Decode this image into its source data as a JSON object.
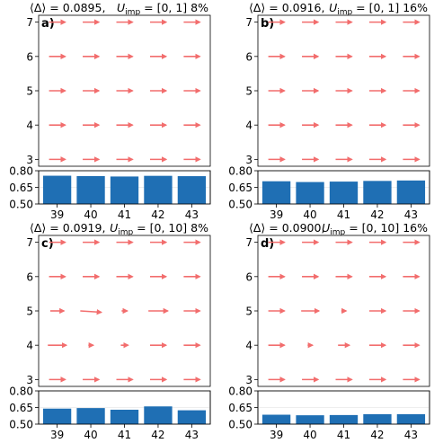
{
  "chart_data": [
    {
      "label": "a)",
      "title_delta": "⟨Δ⟩ = 0.0895,",
      "title_u": "U",
      "title_u_sub": "imp",
      "title_range": " = [0, 1] 8%",
      "type": "quiver",
      "x": [
        39,
        40,
        41,
        42,
        43
      ],
      "y": [
        3,
        4,
        5,
        6,
        7
      ],
      "ylim": [
        2.8,
        7.2
      ],
      "arrow_lengths": [
        [
          1,
          1,
          1,
          1,
          1
        ],
        [
          1,
          1,
          1,
          1,
          1
        ],
        [
          1,
          1,
          1,
          1,
          1
        ],
        [
          1,
          1,
          1,
          1,
          1
        ],
        [
          1,
          1,
          1,
          1,
          1
        ]
      ],
      "bars": {
        "type": "bar",
        "categories": [
          "39",
          "40",
          "41",
          "42",
          "43"
        ],
        "values": [
          0.755,
          0.752,
          0.748,
          0.754,
          0.751
        ],
        "yticks": [
          "0.50",
          "0.65",
          "0.80"
        ],
        "ylim": [
          0.5,
          0.8
        ]
      }
    },
    {
      "label": "b)",
      "title_delta": "⟨Δ⟩ = 0.0916,",
      "title_u": "U",
      "title_u_sub": "imp",
      "title_range": " = [0, 1] 16%",
      "type": "quiver",
      "x": [
        39,
        40,
        41,
        42,
        43
      ],
      "y": [
        3,
        4,
        5,
        6,
        7
      ],
      "ylim": [
        2.8,
        7.2
      ],
      "arrow_lengths": [
        [
          1,
          1,
          1,
          1,
          1
        ],
        [
          1,
          1,
          1,
          1,
          1
        ],
        [
          1,
          1,
          1,
          1,
          1
        ],
        [
          1,
          1,
          1,
          1,
          1
        ],
        [
          1,
          1,
          1,
          1,
          1
        ]
      ],
      "bars": {
        "type": "bar",
        "categories": [
          "39",
          "40",
          "41",
          "42",
          "43"
        ],
        "values": [
          0.705,
          0.698,
          0.702,
          0.708,
          0.712
        ],
        "yticks": [
          "0.50",
          "0.65",
          "0.80"
        ],
        "ylim": [
          0.5,
          0.8
        ]
      }
    },
    {
      "label": "c)",
      "title_delta": "⟨Δ⟩ = 0.0919,",
      "title_u": "U",
      "title_u_sub": "imp",
      "title_range": " = [0, 10] 8%",
      "type": "quiver",
      "x": [
        39,
        40,
        41,
        42,
        43
      ],
      "y": [
        3,
        4,
        5,
        6,
        7
      ],
      "ylim": [
        2.8,
        7.2
      ],
      "arrow_lengths": [
        [
          1,
          1,
          1,
          1,
          1
        ],
        [
          1.15,
          0.3,
          0.45,
          1,
          1
        ],
        [
          0.85,
          1.3,
          0.35,
          1.2,
          1
        ],
        [
          1,
          1,
          1,
          1,
          1
        ],
        [
          1,
          1,
          1,
          1,
          1
        ]
      ],
      "bars": {
        "type": "bar",
        "categories": [
          "39",
          "40",
          "41",
          "42",
          "43"
        ],
        "values": [
          0.64,
          0.645,
          0.63,
          0.66,
          0.625
        ],
        "yticks": [
          "0.50",
          "0.65",
          "0.80"
        ],
        "ylim": [
          0.5,
          0.8
        ]
      }
    },
    {
      "label": "d)",
      "title_delta": "⟨Δ⟩ = 0.0900,",
      "title_u": "U",
      "title_u_sub": "imp",
      "title_range": " = [0, 10] 16%",
      "type": "quiver",
      "x": [
        39,
        40,
        41,
        42,
        43
      ],
      "y": [
        3,
        4,
        5,
        6,
        7
      ],
      "ylim": [
        2.8,
        7.2
      ],
      "arrow_lengths": [
        [
          1,
          1,
          1,
          1,
          1
        ],
        [
          1,
          0.3,
          0.7,
          1,
          1
        ],
        [
          1,
          1.1,
          0.3,
          1,
          1
        ],
        [
          1,
          1,
          1,
          1,
          1
        ],
        [
          1,
          1,
          1,
          1,
          1
        ]
      ],
      "bars": {
        "type": "bar",
        "categories": [
          "39",
          "40",
          "41",
          "42",
          "43"
        ],
        "values": [
          0.585,
          0.58,
          0.582,
          0.59,
          0.59
        ],
        "yticks": [
          "0.50",
          "0.65",
          "0.80"
        ],
        "ylim": [
          0.5,
          0.8
        ]
      }
    }
  ],
  "colors": {
    "arrow": "#f26d6d",
    "bar": "#1f6fb4",
    "grid": "#dddddd"
  }
}
